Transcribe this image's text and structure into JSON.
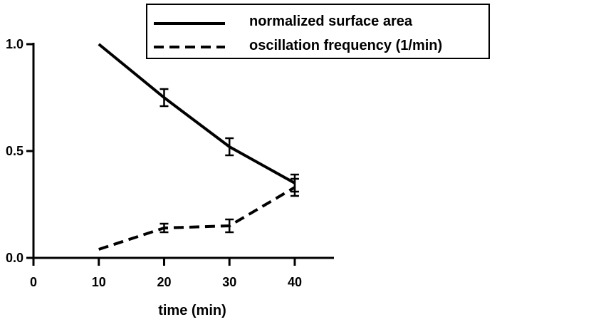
{
  "chart_data": {
    "type": "line",
    "title": "",
    "xlabel": "time (min)",
    "ylabel": "",
    "xlim": [
      0,
      46
    ],
    "ylim": [
      0,
      1.0
    ],
    "x_ticks": [
      "0",
      "10",
      "20",
      "30",
      "40"
    ],
    "y_ticks": [
      "0.0",
      "0.5",
      "1.0"
    ],
    "legend_position": "top-right",
    "series": [
      {
        "name": "normalized surface area",
        "style": "solid",
        "points": [
          {
            "x": 10,
            "y": 1.0,
            "err": 0
          },
          {
            "x": 20,
            "y": 0.75,
            "err": 0.04
          },
          {
            "x": 30,
            "y": 0.52,
            "err": 0.04
          },
          {
            "x": 40,
            "y": 0.35,
            "err": 0.04
          }
        ]
      },
      {
        "name": "oscillation frequency (1/min)",
        "style": "dashed",
        "points": [
          {
            "x": 10,
            "y": 0.04,
            "err": 0
          },
          {
            "x": 20,
            "y": 0.14,
            "err": 0.02
          },
          {
            "x": 30,
            "y": 0.15,
            "err": 0.03
          },
          {
            "x": 40,
            "y": 0.33,
            "err": 0.04
          }
        ]
      }
    ]
  }
}
